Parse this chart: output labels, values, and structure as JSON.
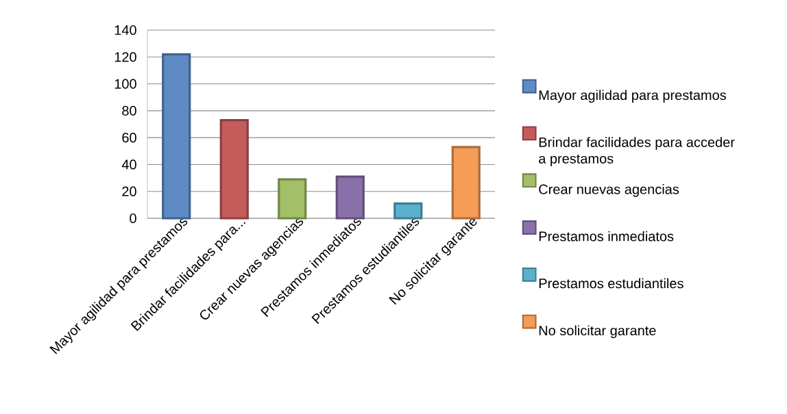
{
  "chart_data": {
    "type": "bar",
    "categories": [
      "Mayor agilidad para prestamos",
      "Brindar facilidades para...",
      "Crear nuevas agencias",
      "Prestamos inmediatos",
      "Prestamos estudiantiles",
      "No solicitar garante"
    ],
    "series": [
      {
        "name": "Mayor agilidad para prestamos",
        "color": "#5e8bc5",
        "values": [
          122,
          null,
          null,
          null,
          null,
          null
        ]
      },
      {
        "name": "Brindar facilidades para acceder a prestamos",
        "color": "#c45c5b",
        "values": [
          null,
          73,
          null,
          null,
          null,
          null
        ]
      },
      {
        "name": "Crear nuevas agencias",
        "color": "#a3bf67",
        "values": [
          null,
          null,
          29,
          null,
          null,
          null
        ]
      },
      {
        "name": "Prestamos inmediatos",
        "color": "#8a71ab",
        "values": [
          null,
          null,
          null,
          31,
          null,
          null
        ]
      },
      {
        "name": "Prestamos estudiantiles",
        "color": "#5bb1cc",
        "values": [
          null,
          null,
          null,
          null,
          11,
          null
        ]
      },
      {
        "name": "No solicitar garante",
        "color": "#f59c57",
        "values": [
          null,
          null,
          null,
          null,
          null,
          53
        ]
      }
    ],
    "ylim": [
      0,
      140
    ],
    "yticks": [
      0,
      20,
      40,
      60,
      80,
      100,
      120,
      140
    ],
    "grid": "y",
    "legend": "right"
  }
}
